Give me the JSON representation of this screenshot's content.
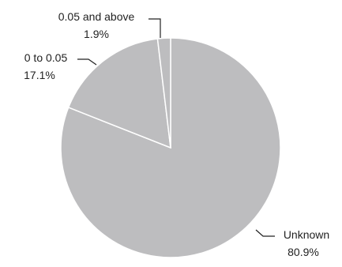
{
  "chart_data": {
    "type": "pie",
    "title": "",
    "slices": [
      {
        "label": "Unknown",
        "value": 80.9,
        "value_label": "80.9%"
      },
      {
        "label": "0 to 0.05",
        "value": 17.1,
        "value_label": "17.1%"
      },
      {
        "label": "0.05 and above",
        "value": 1.9,
        "value_label": "1.9%"
      }
    ],
    "colors": {
      "slice_fill": "#bdbdbf",
      "slice_stroke": "#ffffff",
      "text": "#222222"
    }
  }
}
